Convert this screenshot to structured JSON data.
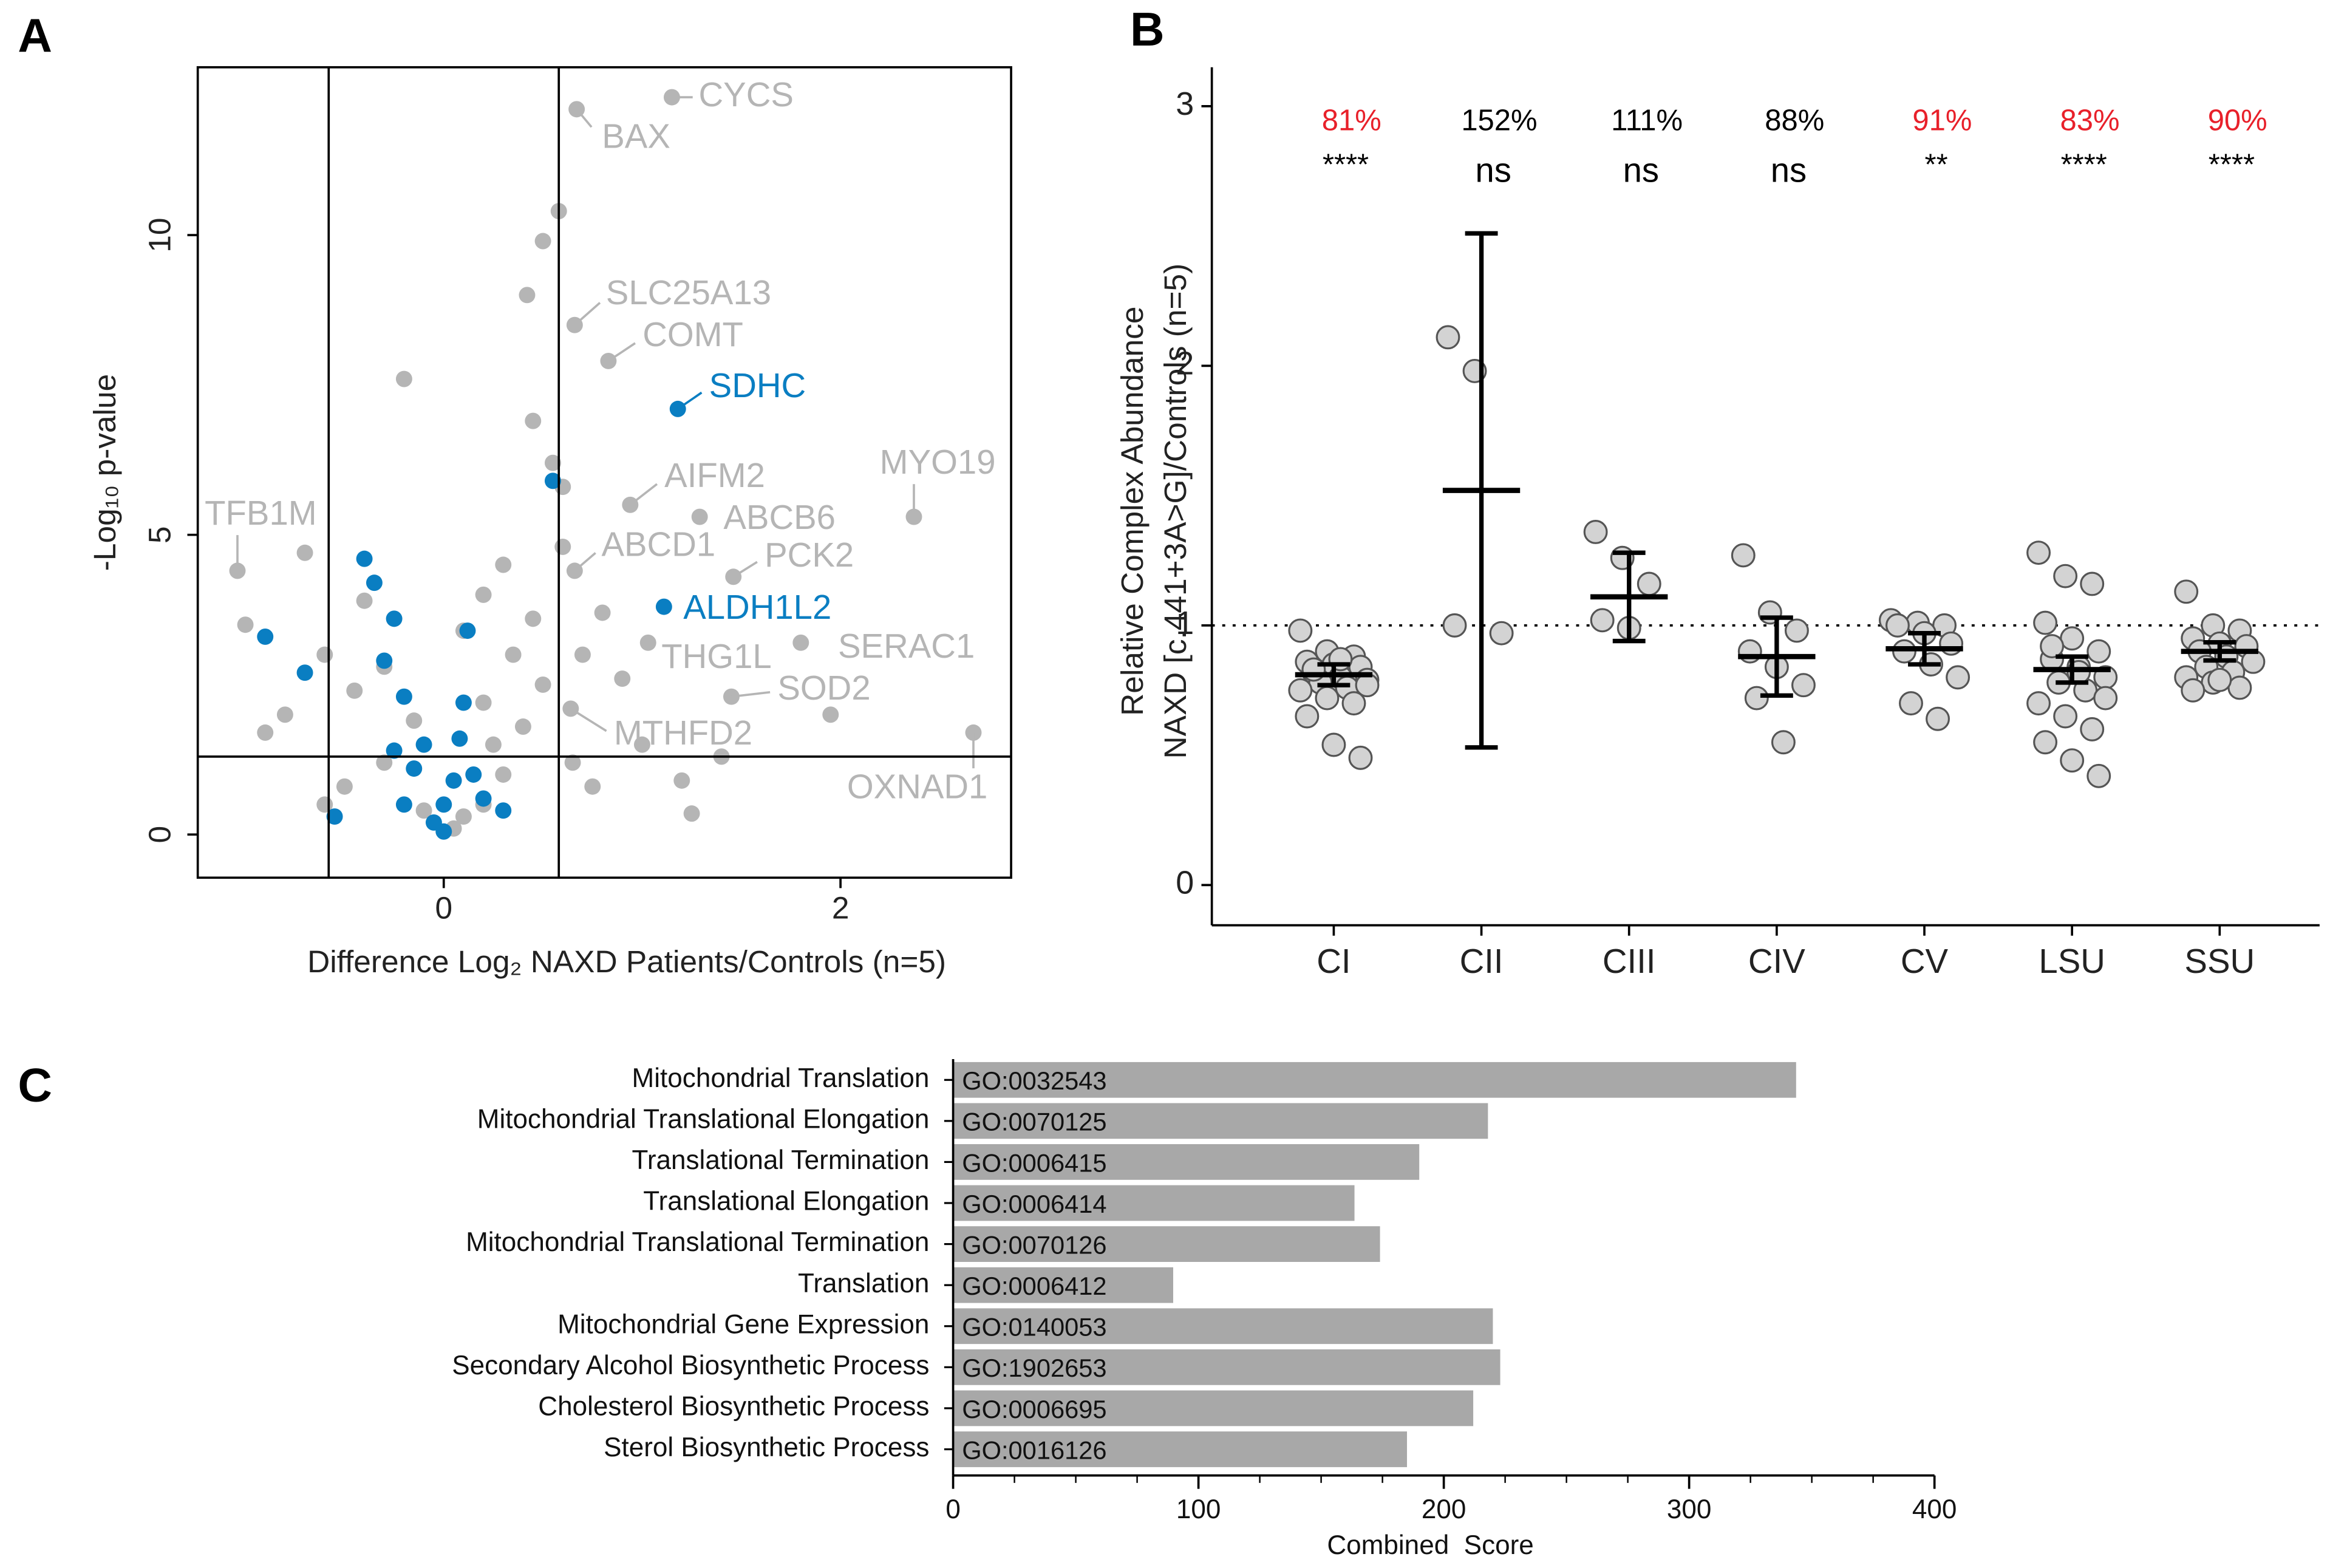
{
  "chart_data": [
    {
      "type": "scatter",
      "panel": "A",
      "xlabel": "Difference Log₂ NAXD Patients/Controls (n=5)",
      "ylabel": "-Log₁₀ p-value",
      "xlim": [
        -1.24,
        2.86
      ],
      "ylim": [
        -0.72,
        12.8
      ],
      "xticks": [
        0,
        2
      ],
      "yticks": [
        0,
        5,
        10
      ],
      "vlines": [
        -0.58,
        0.58
      ],
      "hline": 1.3,
      "series": [
        {
          "color": "#b5b5b5",
          "x": [
            1.15,
            0.67,
            0.66,
            0.83,
            0.94,
            1.29,
            2.37,
            -1.04,
            0.66,
            1.46,
            1.03,
            1.8,
            1.45,
            0.64,
            2.67,
            0.1,
            0.2,
            -0.1,
            0.3,
            -0.3,
            0.4,
            -0.5,
            0.5,
            0.35,
            0.2,
            0.45,
            0.6,
            0.55,
            0.45,
            0.5,
            0.58,
            0.42,
            -0.2,
            -0.4,
            -0.6,
            -0.8,
            -0.9,
            -0.3,
            0.1,
            0.7,
            0.8,
            0.9,
            1.0,
            1.2,
            1.4,
            1.25,
            1.95,
            -0.7,
            -1.0,
            -0.45,
            0.25,
            -0.15,
            0.65,
            0.75,
            -0.6,
            0.05,
            0.3,
            0.6,
            0.2
          ],
          "y": [
            12.3,
            12.1,
            8.5,
            7.9,
            5.5,
            5.3,
            5.3,
            4.4,
            4.4,
            4.3,
            3.2,
            3.2,
            2.3,
            2.1,
            1.7,
            0.3,
            0.5,
            0.4,
            1.0,
            1.2,
            1.8,
            0.8,
            2.5,
            3.0,
            2.2,
            3.6,
            4.8,
            6.2,
            6.9,
            9.9,
            10.4,
            9.0,
            7.6,
            3.9,
            3.0,
            2.0,
            1.7,
            2.8,
            3.4,
            3.0,
            3.7,
            2.6,
            1.5,
            0.9,
            1.3,
            0.35,
            2.0,
            4.7,
            3.5,
            2.4,
            1.5,
            1.9,
            1.2,
            0.8,
            0.5,
            0.1,
            4.5,
            5.8,
            4.0
          ],
          "labels": [
            "CYCS",
            "BAX",
            "SLC25A13",
            "COMT",
            "AIFM2",
            "ABCB6",
            "MYO19",
            "TFB1M",
            "ABCD1",
            "PCK2",
            "THG1L",
            "SERAC1",
            "SOD2",
            "MTHFD2",
            "OXNAD1"
          ]
        },
        {
          "color": "#0a7ec2",
          "x": [
            1.18,
            1.11,
            -0.4,
            -0.35,
            -0.25,
            -0.3,
            -0.2,
            -0.9,
            -0.7,
            -0.55,
            0.1,
            0.12,
            0.55,
            -0.1,
            0,
            -0.05,
            0.05,
            0.15,
            -0.15,
            0.2,
            0.3,
            -0.2,
            0,
            0.08,
            -0.25
          ],
          "y": [
            7.1,
            3.8,
            4.6,
            4.2,
            3.6,
            2.9,
            2.3,
            3.3,
            2.7,
            0.3,
            2.2,
            3.4,
            5.9,
            1.5,
            0.5,
            0.2,
            0.9,
            1.0,
            1.1,
            0.6,
            0.4,
            0.5,
            0.05,
            1.6,
            1.4
          ],
          "labels": [
            "SDHC",
            "ALDH1L2"
          ]
        }
      ]
    },
    {
      "type": "strip",
      "panel": "B",
      "ylabel": [
        "Relative Complex Abundance",
        "NAXD [c.441+3A>G]/Controls (n=5)"
      ],
      "ylim": [
        -0.155,
        3.15
      ],
      "yticks": [
        0,
        1,
        2,
        3
      ],
      "refline": 1,
      "categories": [
        "CI",
        "CII",
        "CIII",
        "CIV",
        "CV",
        "LSU",
        "SSU"
      ],
      "values": [
        0.81,
        1.52,
        1.11,
        0.88,
        0.91,
        0.83,
        0.9
      ],
      "value_labels": [
        "81%",
        "152%",
        "111%",
        "88%",
        "91%",
        "83%",
        "90%"
      ],
      "value_label_colors": [
        "#e8202a",
        "#000000",
        "#000000",
        "#000000",
        "#e8202a",
        "#e8202a",
        "#e8202a"
      ],
      "errors": [
        0.04,
        0.99,
        0.17,
        0.15,
        0.06,
        0.05,
        0.035
      ],
      "significance": [
        "****",
        "ns",
        "ns",
        "ns",
        "**",
        "****",
        "****"
      ],
      "points": [
        [
          0.98,
          0.9,
          0.88,
          0.86,
          0.85,
          0.84,
          0.82,
          0.8,
          0.79,
          0.78,
          0.76,
          0.75,
          0.72,
          0.7,
          0.65,
          0.54,
          0.49,
          0.83,
          0.87,
          0.77
        ],
        [
          2.11,
          1.98,
          0.97,
          1.0
        ],
        [
          1.36,
          1.26,
          1.16,
          1.02,
          0.99
        ],
        [
          1.27,
          1.05,
          0.98,
          0.9,
          0.84,
          0.77,
          0.72,
          0.55
        ],
        [
          1.02,
          1.01,
          1.0,
          1.0,
          0.97,
          0.93,
          0.9,
          0.85,
          0.8,
          0.7,
          0.64
        ],
        [
          1.28,
          1.19,
          1.16,
          1.01,
          0.95,
          0.9,
          0.87,
          0.84,
          0.8,
          0.78,
          0.75,
          0.7,
          0.65,
          0.6,
          0.55,
          0.48,
          0.42,
          0.92,
          0.82,
          0.72
        ],
        [
          1.13,
          1.0,
          0.98,
          0.95,
          0.93,
          0.92,
          0.9,
          0.88,
          0.86,
          0.84,
          0.82,
          0.8,
          0.78,
          0.76,
          0.75,
          0.79
        ]
      ],
      "color": "#d3d3d3"
    },
    {
      "type": "hbar",
      "panel": "C",
      "xlabel": "Combined  Score",
      "xlim": [
        0,
        400
      ],
      "xticks": [
        0,
        100,
        200,
        300,
        400
      ],
      "xticks_minor": [
        25,
        50,
        75,
        125,
        150,
        175,
        225,
        250,
        275,
        325,
        350,
        375
      ],
      "categories": [
        "Mitochondrial Translation",
        "Mitochondrial Translational Elongation",
        "Translational Termination",
        "Translational Elongation",
        "Mitochondrial Translational Termination",
        "Translation",
        "Mitochondrial Gene Expression",
        "Secondary Alcohol Biosynthetic Process",
        "Cholesterol Biosynthetic Process",
        "Sterol Biosynthetic Process"
      ],
      "bar_labels": [
        "GO:0032543",
        "GO:0070125",
        "GO:0006415",
        "GO:0006414",
        "GO:0070126",
        "GO:0006412",
        "GO:0140053",
        "GO:1902653",
        "GO:0006695",
        "GO:0016126"
      ],
      "values": [
        343.6,
        218,
        190,
        163.6,
        174,
        89.7,
        220,
        223,
        212,
        185
      ],
      "color": "#a8a8a8"
    }
  ]
}
